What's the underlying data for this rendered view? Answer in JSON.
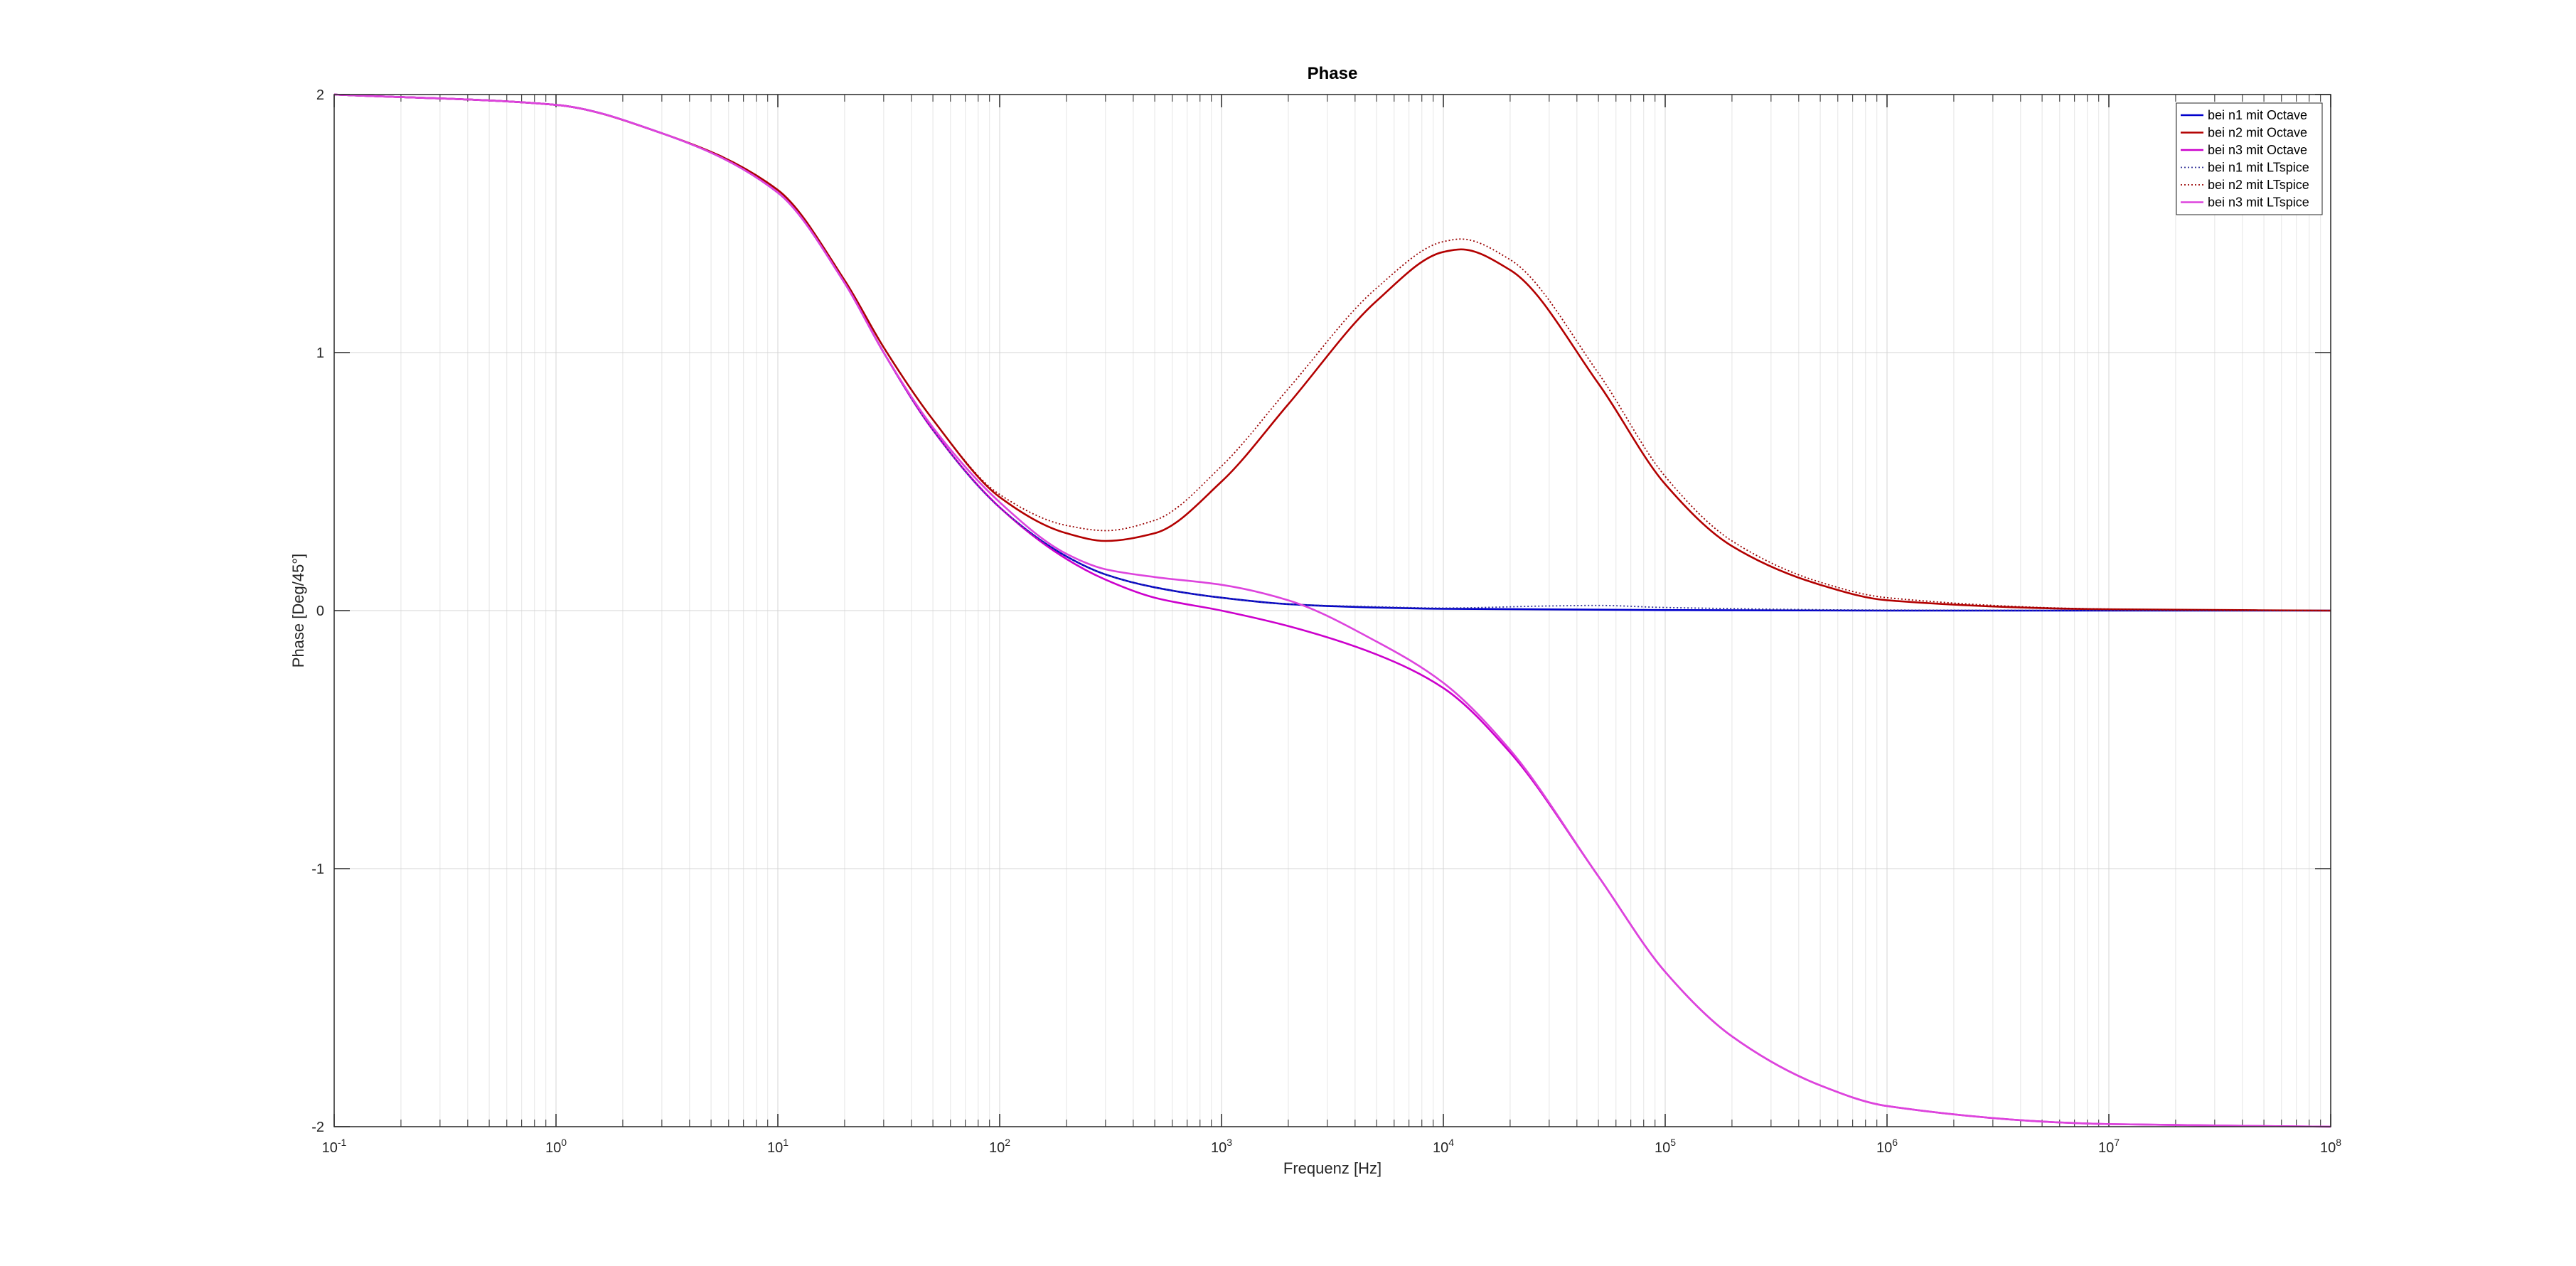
{
  "chart_data": {
    "type": "line",
    "title": "Phase",
    "xlabel": "Frequenz [Hz]",
    "ylabel": "Phase [Deg/45°]",
    "xscale": "log",
    "xlim": [
      0.1,
      100000000
    ],
    "ylim": [
      -2,
      2
    ],
    "x_ticks": [
      {
        "value": 0.1,
        "base": "10",
        "exp": "-1"
      },
      {
        "value": 1,
        "base": "10",
        "exp": "0"
      },
      {
        "value": 10,
        "base": "10",
        "exp": "1"
      },
      {
        "value": 100,
        "base": "10",
        "exp": "2"
      },
      {
        "value": 1000,
        "base": "10",
        "exp": "3"
      },
      {
        "value": 10000,
        "base": "10",
        "exp": "4"
      },
      {
        "value": 100000,
        "base": "10",
        "exp": "5"
      },
      {
        "value": 1000000,
        "base": "10",
        "exp": "6"
      },
      {
        "value": 10000000,
        "base": "10",
        "exp": "7"
      },
      {
        "value": 100000000,
        "base": "10",
        "exp": "8"
      }
    ],
    "y_ticks": [
      {
        "value": -2,
        "label": "-2"
      },
      {
        "value": -1,
        "label": "-1"
      },
      {
        "value": 0,
        "label": "0"
      },
      {
        "value": 1,
        "label": "1"
      },
      {
        "value": 2,
        "label": "2"
      }
    ],
    "grid": true,
    "minor_grid": true,
    "legend_position": "top-right",
    "series": [
      {
        "name": "bei n1 mit Octave",
        "color": "#0000cc",
        "style": "solid",
        "x": [
          0.1,
          1,
          3,
          10,
          20,
          30,
          50,
          100,
          200,
          300,
          500,
          1000,
          2000,
          5000,
          10000,
          100000,
          1000000,
          100000000
        ],
        "y": [
          2.0,
          1.96,
          1.85,
          1.62,
          1.27,
          1.0,
          0.7,
          0.4,
          0.21,
          0.14,
          0.09,
          0.05,
          0.025,
          0.012,
          0.007,
          0.002,
          0.0,
          0.0
        ]
      },
      {
        "name": "bei n2 mit Octave",
        "color": "#b30000",
        "style": "solid",
        "x": [
          0.1,
          1,
          3,
          10,
          20,
          30,
          50,
          100,
          200,
          300,
          500,
          1000,
          2000,
          5000,
          10000,
          12000,
          20000,
          50000,
          100000,
          200000,
          500000,
          1000000,
          10000000,
          100000000
        ],
        "y": [
          2.0,
          1.96,
          1.85,
          1.63,
          1.28,
          1.02,
          0.74,
          0.44,
          0.3,
          0.27,
          0.3,
          0.5,
          0.8,
          1.2,
          1.39,
          1.4,
          1.32,
          0.88,
          0.49,
          0.25,
          0.1,
          0.04,
          0.005,
          0.0
        ]
      },
      {
        "name": "bei n3 mit Octave",
        "color": "#cc00cc",
        "style": "solid",
        "x": [
          0.1,
          1,
          3,
          10,
          20,
          30,
          50,
          100,
          200,
          300,
          500,
          1000,
          2000,
          5000,
          10000,
          20000,
          50000,
          100000,
          200000,
          500000,
          1000000,
          10000000,
          100000000
        ],
        "y": [
          2.0,
          1.96,
          1.85,
          1.62,
          1.27,
          1.0,
          0.7,
          0.4,
          0.2,
          0.12,
          0.05,
          0.0,
          -0.06,
          -0.17,
          -0.3,
          -0.55,
          -1.03,
          -1.4,
          -1.65,
          -1.84,
          -1.92,
          -1.99,
          -2.0
        ]
      },
      {
        "name": "bei n1 mit LTspice",
        "color": "#333399",
        "style": "dotted",
        "x": [
          0.1,
          1,
          3,
          10,
          20,
          30,
          50,
          100,
          200,
          300,
          500,
          1000,
          2000,
          5000,
          10000,
          30000,
          50000,
          100000,
          1000000,
          100000000
        ],
        "y": [
          2.0,
          1.96,
          1.85,
          1.62,
          1.27,
          1.0,
          0.7,
          0.4,
          0.21,
          0.14,
          0.09,
          0.05,
          0.025,
          0.015,
          0.01,
          0.018,
          0.02,
          0.012,
          0.002,
          0.0
        ]
      },
      {
        "name": "bei n2 mit LTspice",
        "color": "#990000",
        "style": "dotted",
        "x": [
          0.1,
          1,
          3,
          10,
          20,
          30,
          50,
          100,
          200,
          300,
          500,
          1000,
          2000,
          5000,
          10000,
          12000,
          20000,
          50000,
          100000,
          200000,
          500000,
          1000000,
          10000000,
          100000000
        ],
        "y": [
          2.0,
          1.96,
          1.85,
          1.63,
          1.28,
          1.02,
          0.74,
          0.45,
          0.33,
          0.31,
          0.35,
          0.56,
          0.86,
          1.25,
          1.43,
          1.44,
          1.36,
          0.92,
          0.52,
          0.27,
          0.11,
          0.05,
          0.006,
          0.0
        ]
      },
      {
        "name": "bei n3 mit LTspice",
        "color": "#dd44dd",
        "style": "solid",
        "x": [
          0.1,
          1,
          3,
          10,
          20,
          30,
          50,
          100,
          200,
          300,
          500,
          1000,
          2000,
          5000,
          10000,
          20000,
          50000,
          100000,
          200000,
          500000,
          1000000,
          10000000,
          100000000
        ],
        "y": [
          2.0,
          1.96,
          1.85,
          1.62,
          1.27,
          1.0,
          0.71,
          0.42,
          0.22,
          0.16,
          0.13,
          0.1,
          0.04,
          -0.12,
          -0.28,
          -0.54,
          -1.03,
          -1.4,
          -1.65,
          -1.84,
          -1.92,
          -1.99,
          -2.0
        ]
      }
    ]
  }
}
